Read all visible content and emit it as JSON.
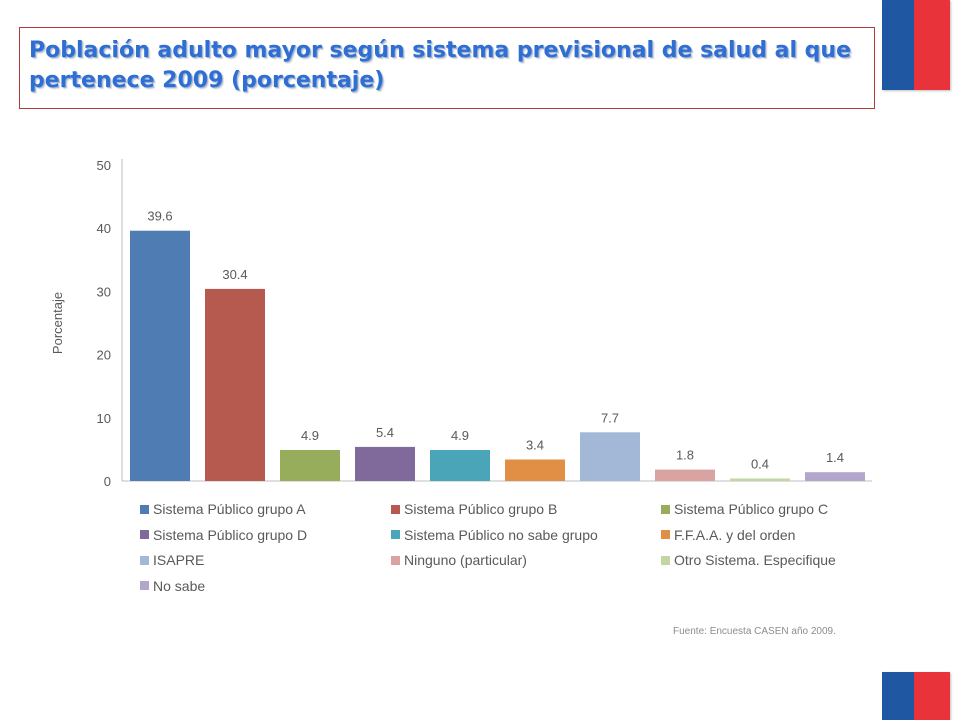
{
  "title": "Población adulto mayor según sistema previsional de salud al que pertenece 2009 (porcentaje)",
  "source": "Fuente: Encuesta CASEN año 2009.",
  "colors": {
    "flag_blue": "#1f57a3",
    "flag_red": "#e8333b",
    "title": "#2f6fd3",
    "title_border": "#b03a3a"
  },
  "chart_data": {
    "type": "bar",
    "ylabel": "Porcentaje",
    "xlabel": "",
    "ylim": [
      0,
      50
    ],
    "yticks": [
      "0",
      "10",
      "20",
      "30",
      "40",
      "50"
    ],
    "grid": false,
    "legend_position": "bottom",
    "categories": [
      "Sistema Público grupo A",
      "Sistema Público grupo B",
      "Sistema Público grupo C",
      "Sistema Público grupo D",
      "Sistema Público no sabe grupo",
      "F.F.A.A. y del orden",
      "ISAPRE",
      "Ninguno (particular)",
      "Otro Sistema. Especifique",
      "No sabe"
    ],
    "values": [
      39.6,
      30.4,
      4.9,
      5.4,
      4.9,
      3.4,
      7.7,
      1.8,
      0.4,
      1.4
    ],
    "value_labels": [
      "39.6",
      "30.4",
      "4.9",
      "5.4",
      "4.9",
      "3.4",
      "7.7",
      "1.8",
      "0.4",
      "1.4"
    ],
    "colors": [
      "#4f7db3",
      "#b65a4f",
      "#97ad5b",
      "#7f6a9b",
      "#4aa5b8",
      "#e08f45",
      "#a3b8d6",
      "#d9a3a1",
      "#c2d6a3",
      "#b3a6cc"
    ]
  }
}
